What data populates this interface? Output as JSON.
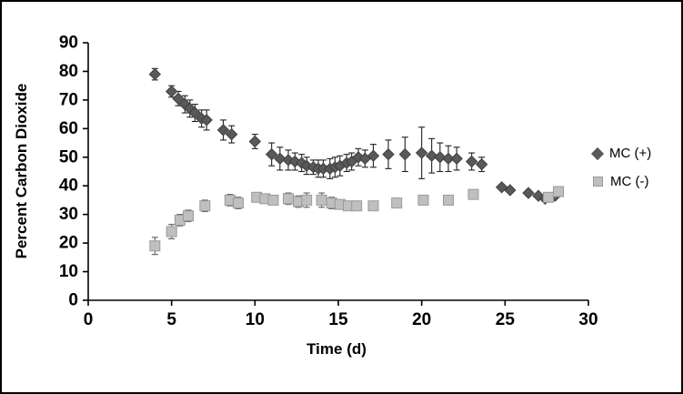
{
  "figure": {
    "background": "#ffffff",
    "border_color": "#000000"
  },
  "chart_data": {
    "type": "scatter",
    "title": "",
    "xlabel": "Time (d)",
    "ylabel": "Percent Carbon Dioxide",
    "xlim": [
      0,
      30
    ],
    "ylim": [
      0,
      90
    ],
    "xticks": [
      0,
      5,
      10,
      15,
      20,
      25,
      30
    ],
    "yticks": [
      0,
      10,
      20,
      30,
      40,
      50,
      60,
      70,
      80,
      90
    ],
    "grid": false,
    "legend_position": "right",
    "axis_color": "#000000",
    "tick_label_color": "#000000",
    "series": [
      {
        "name": "MC (+)",
        "marker": "diamond",
        "fill": "#595959",
        "stroke": "#3f3f3f",
        "error_color": "#1f1f1f",
        "points": [
          [
            4,
            79,
            2
          ],
          [
            5,
            73,
            2
          ],
          [
            5.4,
            70.5,
            2.5
          ],
          [
            5.8,
            68.5,
            3
          ],
          [
            6.1,
            67,
            3
          ],
          [
            6.4,
            65.5,
            3
          ],
          [
            6.8,
            63.5,
            3
          ],
          [
            7.1,
            63,
            3.5
          ],
          [
            8.1,
            59.5,
            3.5
          ],
          [
            8.6,
            58,
            3
          ],
          [
            10,
            55.5,
            2.5
          ],
          [
            11,
            51,
            4
          ],
          [
            11.5,
            49.5,
            4
          ],
          [
            12,
            49,
            3.5
          ],
          [
            12.4,
            48.5,
            3
          ],
          [
            12.8,
            48,
            3
          ],
          [
            13.1,
            47,
            3
          ],
          [
            13.5,
            46.5,
            2.5
          ],
          [
            13.8,
            46,
            3
          ],
          [
            14.1,
            46,
            3
          ],
          [
            14.5,
            46,
            3.5
          ],
          [
            14.8,
            46.5,
            3.5
          ],
          [
            15.1,
            47,
            3.5
          ],
          [
            15.5,
            48,
            3
          ],
          [
            15.8,
            48.5,
            3
          ],
          [
            16.2,
            50,
            3
          ],
          [
            16.6,
            49.5,
            3
          ],
          [
            17.1,
            50.5,
            4
          ],
          [
            18,
            51,
            5
          ],
          [
            19,
            51,
            6
          ],
          [
            20,
            51.5,
            9
          ],
          [
            20.6,
            50.5,
            6
          ],
          [
            21.1,
            50,
            5
          ],
          [
            21.6,
            49.5,
            4.5
          ],
          [
            22.1,
            49.5,
            4
          ],
          [
            23,
            48.5,
            3
          ],
          [
            23.6,
            47.5,
            2.5
          ],
          [
            24.8,
            39.5,
            0
          ],
          [
            25.3,
            38.5,
            0
          ],
          [
            26.4,
            37.5,
            0
          ],
          [
            27,
            36.5,
            0
          ],
          [
            27.4,
            35.5,
            0
          ],
          [
            28,
            36.5,
            0
          ]
        ]
      },
      {
        "name": "MC (-)",
        "marker": "square",
        "fill": "#bfbfbf",
        "stroke": "#9a9a9a",
        "error_color": "#5f5f5f",
        "points": [
          [
            4,
            19,
            3
          ],
          [
            5,
            24,
            2.5
          ],
          [
            5.5,
            28,
            2
          ],
          [
            6,
            29.5,
            2
          ],
          [
            7,
            33,
            2
          ],
          [
            8.5,
            35,
            2
          ],
          [
            9,
            34,
            2
          ],
          [
            10.1,
            36,
            1.5
          ],
          [
            10.6,
            35.5,
            1.5
          ],
          [
            11.1,
            35,
            1.5
          ],
          [
            12,
            35.5,
            2
          ],
          [
            12.6,
            34.5,
            2
          ],
          [
            13.1,
            35,
            2.5
          ],
          [
            14,
            35,
            2.5
          ],
          [
            14.6,
            34,
            2
          ],
          [
            15.1,
            33.5,
            1.5
          ],
          [
            15.6,
            33,
            1.5
          ],
          [
            16.1,
            33,
            1.5
          ],
          [
            17.1,
            33,
            1.5
          ],
          [
            18.5,
            34,
            1
          ],
          [
            20.1,
            35,
            1
          ],
          [
            21.6,
            35,
            1
          ],
          [
            23.1,
            37,
            0
          ],
          [
            27.6,
            36,
            0
          ],
          [
            28.2,
            38,
            0
          ]
        ]
      }
    ]
  }
}
